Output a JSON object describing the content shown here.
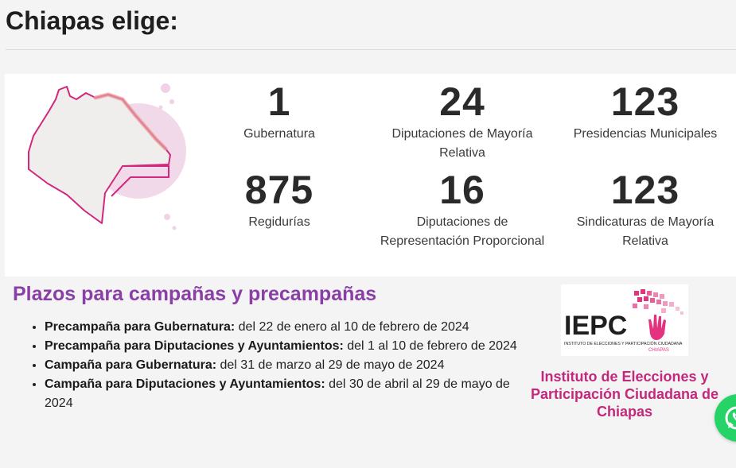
{
  "page": {
    "title": "Chiapas elige:"
  },
  "stats": [
    {
      "value": "1",
      "label": "Gubernatura"
    },
    {
      "value": "24",
      "label": "Diputaciones de Mayoría Relativa"
    },
    {
      "value": "123",
      "label": "Presidencias Municipales"
    },
    {
      "value": "875",
      "label": "Regidurías"
    },
    {
      "value": "16",
      "label": "Diputaciones de Representación Proporcional"
    },
    {
      "value": "123",
      "label": "Sindicaturas de Mayoría Relativa"
    }
  ],
  "deadlines": {
    "title": "Plazos para campañas y precampañas",
    "items": [
      {
        "bold": "Precampaña para Gubernatura:",
        "text": " del 22 de enero al 10 de febrero de 2024"
      },
      {
        "bold": "Precampaña para Diputaciones y Ayuntamientos:",
        "text": " del 1 al 10 de febrero de 2024"
      },
      {
        "bold": "Campaña para Gubernatura:",
        "text": " del 31 de marzo al 29 de mayo de 2024"
      },
      {
        "bold": "Campaña para Diputaciones y Ayuntamientos:",
        "text": " del 30 de abril al 29 de mayo de 2024"
      }
    ]
  },
  "institute": {
    "logo_acronym": "IEPC",
    "logo_subtitle": "INSTITUTO DE ELECCIONES Y PARTICIPACIÓN CIUDADANA",
    "logo_region": "CHIAPAS",
    "name": "Instituto de Elecciones y Participación Ciudadana de Chiapas"
  },
  "icons": {
    "map": "chiapas-map-icon",
    "whatsapp": "whatsapp-icon"
  },
  "colors": {
    "accent_purple": "#8a3fa6",
    "accent_magenta": "#c2287c",
    "whatsapp": "#25d366"
  }
}
